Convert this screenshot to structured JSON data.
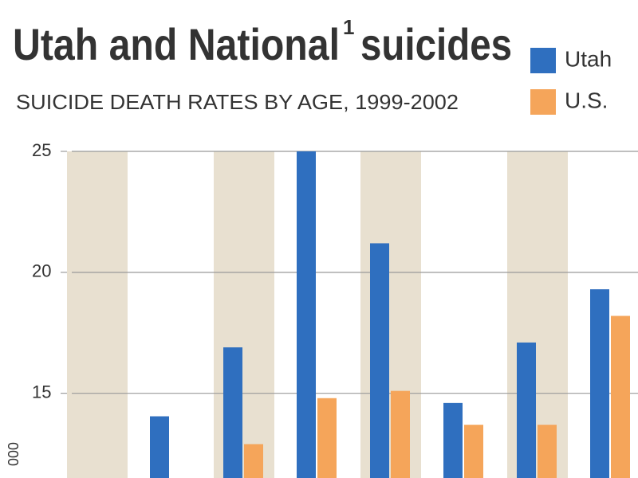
{
  "chart_data": {
    "type": "bar",
    "title_parts": [
      "Utah and National",
      "1",
      "suicides"
    ],
    "subtitle": "SUICIDE DEATH RATES BY AGE, 1999-2002",
    "ylabel": "000",
    "categories": [
      null,
      null,
      null,
      null,
      null,
      null,
      null,
      null
    ],
    "series": [
      {
        "name": "Utah",
        "color": "#2f6fbf",
        "values": [
          null,
          14.05,
          16.9,
          25,
          21.2,
          14.6,
          17.1,
          19.3
        ]
      },
      {
        "name": "U.S.",
        "color": "#f5a55a",
        "values": [
          null,
          null,
          12.9,
          14.8,
          15.1,
          13.7,
          13.7,
          18.2
        ]
      }
    ],
    "ylim": [
      11.5,
      25
    ],
    "yticks": [
      15,
      20,
      25
    ],
    "grid": true,
    "band_color": "#e8e0d0"
  }
}
